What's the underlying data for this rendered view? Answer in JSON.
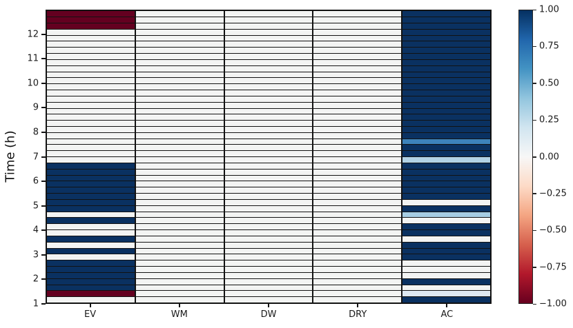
{
  "chart_data": {
    "type": "heatmap",
    "title": "",
    "xlabel": "",
    "ylabel": "Time (h)",
    "categories": [
      "EV",
      "WM",
      "DW",
      "DRY",
      "AC"
    ],
    "y_tick_labels": [
      "1",
      "2",
      "3",
      "4",
      "5",
      "6",
      "7",
      "8",
      "9",
      "10",
      "11",
      "12"
    ],
    "y_ticks": [
      1,
      2,
      3,
      4,
      5,
      6,
      7,
      8,
      9,
      10,
      11,
      12
    ],
    "y_range": [
      1,
      13
    ],
    "n_rows": 48,
    "row_duration_h": 0.25,
    "rows_order": "index 0 = bottom row (1.00-1.25 h), index 47 = top row (12.75-13.00 h)",
    "grid": true,
    "cell_border_color": "#121212",
    "series": [
      {
        "name": "EV",
        "values": [
          0,
          -1,
          1,
          1,
          1,
          1,
          1,
          0,
          1,
          0,
          1,
          0,
          0,
          1,
          0,
          1,
          1,
          1,
          1,
          1,
          1,
          1,
          1,
          0,
          0,
          0,
          0,
          0,
          0,
          0,
          0,
          0,
          0,
          0,
          0,
          0,
          0,
          0,
          0,
          0,
          0,
          0,
          0,
          0,
          0,
          -1,
          -1,
          -1
        ]
      },
      {
        "name": "WM",
        "values": [
          0,
          0,
          0,
          0,
          0,
          0,
          0,
          0,
          0,
          0,
          0,
          0,
          0,
          0,
          0,
          0,
          0,
          0,
          0,
          0,
          0,
          0,
          0,
          0,
          0,
          0,
          0,
          0,
          0,
          0,
          0,
          0,
          0,
          0,
          0,
          0,
          0,
          0,
          0,
          0,
          0,
          0,
          0,
          0,
          0,
          0,
          0,
          0
        ]
      },
      {
        "name": "DW",
        "values": [
          0,
          0,
          0,
          0,
          0,
          0,
          0,
          0,
          0,
          0,
          0,
          0,
          0,
          0,
          0,
          0,
          0,
          0,
          0,
          0,
          0,
          0,
          0,
          0,
          0,
          0,
          0,
          0,
          0,
          0,
          0,
          0,
          0,
          0,
          0,
          0,
          0,
          0,
          0,
          0,
          0,
          0,
          0,
          0,
          0,
          0,
          0,
          0
        ]
      },
      {
        "name": "DRY",
        "values": [
          0,
          0,
          0,
          0,
          0,
          0,
          0,
          0,
          0,
          0,
          0,
          0,
          0,
          0,
          0,
          0,
          0,
          0,
          0,
          0,
          0,
          0,
          0,
          0,
          0,
          0,
          0,
          0,
          0,
          0,
          0,
          0,
          0,
          0,
          0,
          0,
          0,
          0,
          0,
          0,
          0,
          0,
          0,
          0,
          0,
          0,
          0,
          0
        ]
      },
      {
        "name": "AC",
        "values": [
          1,
          0.1,
          0,
          1,
          0,
          0,
          0,
          1,
          1,
          1,
          0,
          1,
          1,
          0,
          0.3,
          1,
          0,
          1,
          1,
          1,
          1,
          1,
          1,
          0.25,
          1,
          1,
          0.55,
          1,
          1,
          1,
          1,
          1,
          1,
          1,
          1,
          1,
          1,
          1,
          1,
          1,
          1,
          1,
          1,
          1,
          1,
          1,
          1,
          1
        ]
      }
    ],
    "value_colors": {
      "-1": "#640020",
      "0": "#f3f4f3",
      "0.1": "#dfe9f2",
      "0.25": "#b2d2e5",
      "0.3": "#a6cde3",
      "0.55": "#3d83bb",
      "1": "#0a3161"
    },
    "colorbar": {
      "min": -1,
      "max": 1,
      "colormap": "RdBu",
      "tick_labels": [
        "1.00",
        "0.75",
        "0.50",
        "0.25",
        "0.00",
        "−0.25",
        "−0.50",
        "−0.75",
        "−1.00"
      ],
      "gradient_top_to_bottom": [
        "#053061",
        "#2166ac",
        "#4393c3",
        "#92c5de",
        "#d1e5f0",
        "#f7f7f7",
        "#fddbc7",
        "#f4a582",
        "#d6604d",
        "#b2182b",
        "#67001f"
      ]
    },
    "legend": null
  }
}
